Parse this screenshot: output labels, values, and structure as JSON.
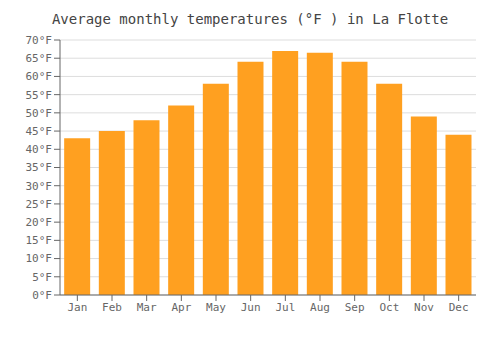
{
  "chart_data": {
    "type": "bar",
    "title": "Average monthly temperatures (°F ) in La Flotte",
    "categories": [
      "Jan",
      "Feb",
      "Mar",
      "Apr",
      "May",
      "Jun",
      "Jul",
      "Aug",
      "Sep",
      "Oct",
      "Nov",
      "Dec"
    ],
    "values": [
      43,
      45,
      48,
      52,
      58,
      64,
      67,
      66.5,
      64,
      58,
      49,
      44
    ],
    "color": "#FFA020",
    "ylim": [
      0,
      70
    ],
    "yticks": [
      {
        "value": 0,
        "label": "0°F"
      },
      {
        "value": 5,
        "label": "5°F"
      },
      {
        "value": 10,
        "label": "10°F"
      },
      {
        "value": 15,
        "label": "15°F"
      },
      {
        "value": 20,
        "label": "20°F"
      },
      {
        "value": 25,
        "label": "25°F"
      },
      {
        "value": 30,
        "label": "30°F"
      },
      {
        "value": 35,
        "label": "35°F"
      },
      {
        "value": 40,
        "label": "40°F"
      },
      {
        "value": 45,
        "label": "45°F"
      },
      {
        "value": 50,
        "label": "50°F"
      },
      {
        "value": 55,
        "label": "55°F"
      },
      {
        "value": 60,
        "label": "60°F"
      },
      {
        "value": 65,
        "label": "65°F"
      },
      {
        "value": 70,
        "label": "70°F"
      }
    ],
    "grid": true
  }
}
